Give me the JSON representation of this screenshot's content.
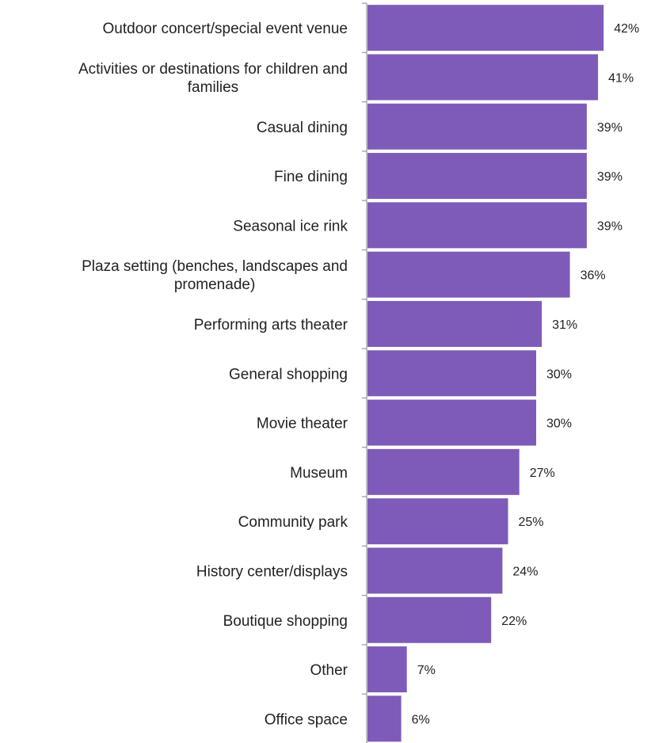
{
  "chart_data": {
    "type": "bar",
    "orientation": "horizontal",
    "categories": [
      "Outdoor concert/special event venue",
      "Activities or destinations for children and families",
      "Casual dining",
      "Fine dining",
      "Seasonal ice rink",
      "Plaza setting (benches, landscapes and promenade)",
      "Performing arts theater",
      "General shopping",
      "Movie theater",
      "Museum",
      "Community park",
      "History center/displays",
      "Boutique shopping",
      "Other",
      "Office space"
    ],
    "category_lines": [
      [
        "Outdoor concert/special event venue"
      ],
      [
        "Activities or destinations for children and",
        "families"
      ],
      [
        "Casual dining"
      ],
      [
        "Fine dining"
      ],
      [
        "Seasonal ice rink"
      ],
      [
        "Plaza setting (benches, landscapes and",
        "promenade)"
      ],
      [
        "Performing arts theater"
      ],
      [
        "General shopping"
      ],
      [
        "Movie theater"
      ],
      [
        "Museum"
      ],
      [
        "Community park"
      ],
      [
        "History center/displays"
      ],
      [
        "Boutique shopping"
      ],
      [
        "Other"
      ],
      [
        "Office space"
      ]
    ],
    "values": [
      42,
      41,
      39,
      39,
      39,
      36,
      31,
      30,
      30,
      27,
      25,
      24,
      22,
      7,
      6
    ],
    "value_labels": [
      "42%",
      "41%",
      "39%",
      "39%",
      "39%",
      "36%",
      "31%",
      "30%",
      "30%",
      "27%",
      "25%",
      "24%",
      "22%",
      "7%",
      "6%"
    ],
    "value_unit": "%",
    "bar_color": "#7e5bb8",
    "axis_color": "#9a9a9a",
    "grid": false,
    "legend": "none"
  }
}
